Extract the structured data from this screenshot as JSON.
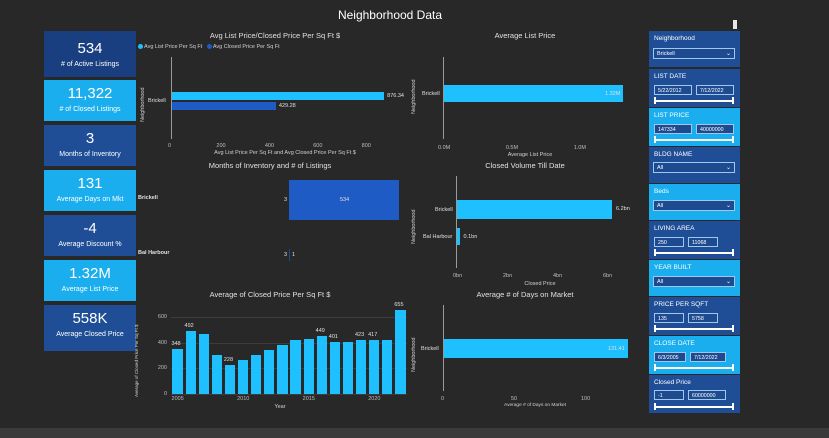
{
  "page": {
    "title": "Neighborhood Data"
  },
  "kpis": [
    {
      "value": "534",
      "label": "# of Active Listings"
    },
    {
      "value": "11,322",
      "label": "# of Closed Listings"
    },
    {
      "value": "3",
      "label": "Months of Inventory"
    },
    {
      "value": "131",
      "label": "Average Days on Mkt"
    },
    {
      "value": "-4",
      "label": "Average Discount %"
    },
    {
      "value": "1.32M",
      "label": "Average List Price"
    },
    {
      "value": "558K",
      "label": "Average Closed Price"
    }
  ],
  "colors": {
    "light_blue": "#1ec0ff",
    "dark_blue": "#1f5bc4",
    "panel_dark": "#1f4e96"
  },
  "chart_data": [
    {
      "type": "bar",
      "title": "Avg List Price/Closed Price Per Sq Ft $",
      "orientation": "horizontal",
      "categories": [
        "Brickell"
      ],
      "series": [
        {
          "name": "Avg List Price Per Sq Ft",
          "values": [
            876.34
          ],
          "color": "#1ec0ff"
        },
        {
          "name": "Avg Closed Price Per Sq Ft",
          "values": [
            429.28
          ],
          "color": "#1f5bc4"
        }
      ],
      "xlabel": "Avg List Price Per Sq Ft and Avg Closed Price Per Sq Ft $",
      "ylabel": "Neighborhood",
      "xticks": [
        "0",
        "200",
        "400",
        "600",
        "800"
      ],
      "xlim": [
        0,
        950
      ],
      "data_labels": [
        "876.34",
        "429.28"
      ],
      "legend": "top-left"
    },
    {
      "type": "bar",
      "title": "Average List Price",
      "orientation": "horizontal",
      "categories": [
        "Brickell"
      ],
      "values": [
        1.32
      ],
      "xlabel": "Average List Price",
      "ylabel": "Neighborhood",
      "xticks": [
        "0.0M",
        "0.5M",
        "1.0M"
      ],
      "xlim": [
        0,
        1.4
      ],
      "data_labels": [
        "1.32M"
      ]
    },
    {
      "type": "bar",
      "title": "Months of Inventory and # of Listings",
      "orientation": "horizontal",
      "categories": [
        "Brickell",
        "Bal Harbour"
      ],
      "series": [
        {
          "name": "Months of Inventory",
          "values": [
            3,
            3
          ],
          "data_labels": [
            "3",
            "3"
          ]
        },
        {
          "name": "# of Listings",
          "values": [
            534,
            1
          ],
          "data_labels": [
            "534",
            "1"
          ]
        }
      ],
      "xlim": [
        0,
        600
      ]
    },
    {
      "type": "bar",
      "title": "Closed Volume Till Date",
      "orientation": "horizontal",
      "categories": [
        "Brickell",
        "Bal Harbour"
      ],
      "values": [
        6.2,
        0.1
      ],
      "xlabel": "Closed Price",
      "ylabel": "Neighborhood",
      "xticks": [
        "0bn",
        "2bn",
        "4bn",
        "6bn"
      ],
      "xlim": [
        0,
        6.8
      ],
      "data_labels": [
        "6.2bn",
        "0.1bn"
      ]
    },
    {
      "type": "bar",
      "title": "Average of Closed Price Per Sq Ft $",
      "categories": [
        "2005",
        "2006",
        "2007",
        "2008",
        "2009",
        "2010",
        "2011",
        "2012",
        "2013",
        "2014",
        "2015",
        "2016",
        "2017",
        "2018",
        "2019",
        "2020",
        "2021",
        "2022"
      ],
      "values": [
        348,
        492,
        470,
        305,
        228,
        262,
        300,
        340,
        385,
        420,
        431,
        449,
        401,
        401,
        423,
        417,
        423,
        655
      ],
      "data_labels": {
        "0": "348",
        "1": "492",
        "4": "228",
        "11": "449",
        "12": "401",
        "14": "423",
        "15": "417",
        "17": "655"
      },
      "xlabel": "Year",
      "ylabel": "Average of Closed Price Per Sq Ft $",
      "xticks": [
        "2005",
        "2010",
        "2015",
        "2020"
      ],
      "yticks": [
        "0",
        "200",
        "400",
        "600"
      ],
      "ylim": [
        0,
        700
      ]
    },
    {
      "type": "bar",
      "title": "Average # of Days on Market",
      "orientation": "horizontal",
      "categories": [
        "Brickell"
      ],
      "values": [
        131.41
      ],
      "xlabel": "Average # of Days on Market",
      "ylabel": "Neighborhood",
      "xticks": [
        "0",
        "50",
        "100"
      ],
      "xlim": [
        0,
        140
      ],
      "data_labels": [
        "131.41"
      ]
    }
  ],
  "slicers": {
    "neighborhood": {
      "title": "Neighborhood",
      "value": "Brickell"
    },
    "list_date": {
      "title": "LIST DATE",
      "from": "5/22/2012",
      "to": "7/12/2022"
    },
    "list_price": {
      "title": "LIST PRICE",
      "from": "147334",
      "to": "40000000"
    },
    "bldg_name": {
      "title": "BLDG NAME",
      "value": "All"
    },
    "beds": {
      "title": "Beds",
      "value": "All"
    },
    "living_area": {
      "title": "LIVING AREA",
      "from": "250",
      "to": "11068"
    },
    "year_built": {
      "title": "YEAR BUILT",
      "value": "All"
    },
    "price_per_sqft": {
      "title": "PRICE PER SQFT",
      "from": "135",
      "to": "5758"
    },
    "close_date": {
      "title": "CLOSE DATE",
      "from": "6/3/2005",
      "to": "7/12/2022"
    },
    "closed_price": {
      "title": "Closed Price",
      "from": "-1",
      "to": "60000000"
    }
  }
}
